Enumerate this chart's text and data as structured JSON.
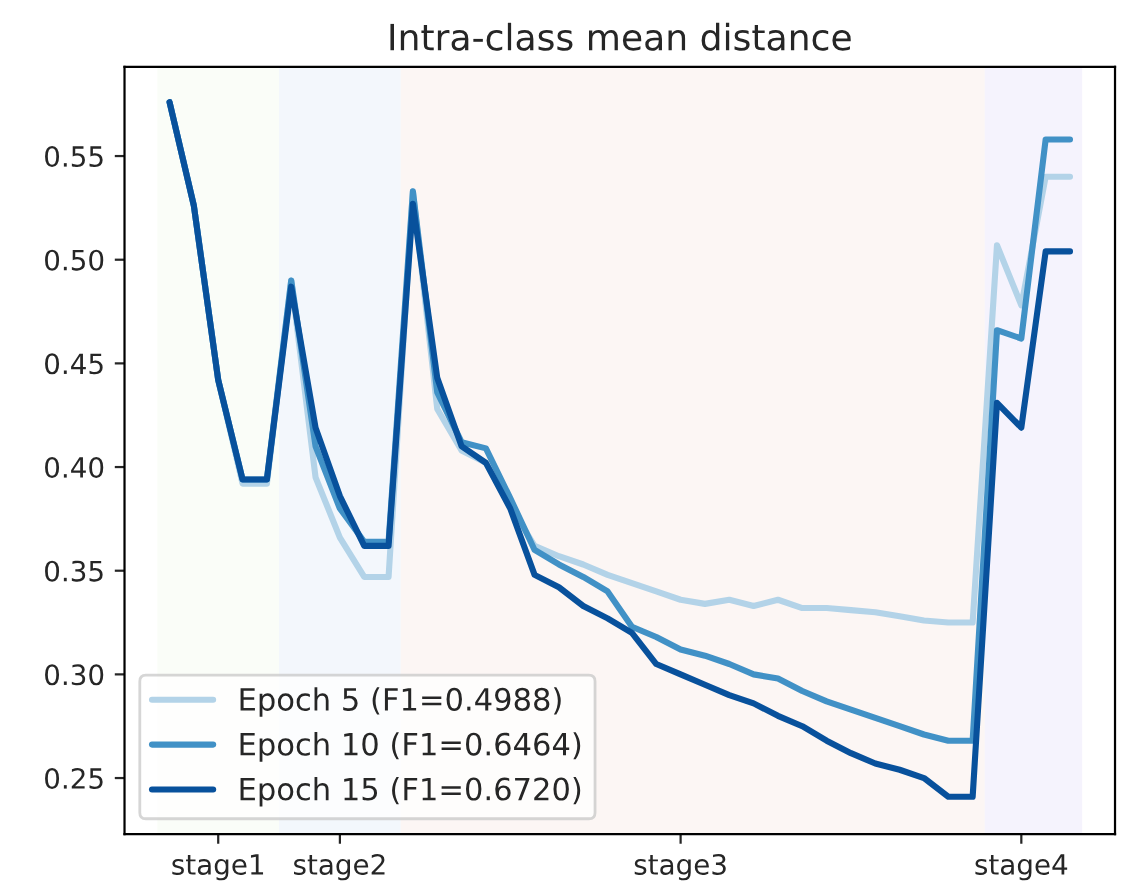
{
  "chart_data": {
    "type": "line",
    "title": "Intra-class mean distance",
    "categories": [
      null,
      null,
      "stage1",
      null,
      null,
      null,
      null,
      "stage2",
      null,
      null,
      null,
      null,
      null,
      null,
      null,
      null,
      null,
      null,
      null,
      null,
      null,
      "stage3",
      null,
      null,
      null,
      null,
      null,
      null,
      null,
      null,
      null,
      null,
      null,
      null,
      null,
      "stage4",
      null,
      null
    ],
    "series": [
      {
        "name": "Epoch 5 (F1=0.4988)",
        "color": "#b3d3e8",
        "values": [
          0.576,
          0.526,
          0.442,
          0.392,
          0.392,
          0.49,
          0.395,
          0.366,
          0.347,
          0.347,
          0.533,
          0.428,
          0.408,
          0.402,
          0.381,
          0.362,
          0.357,
          0.353,
          0.348,
          0.344,
          0.34,
          0.336,
          0.334,
          0.336,
          0.333,
          0.336,
          0.332,
          0.332,
          0.331,
          0.33,
          0.328,
          0.326,
          0.325,
          0.325,
          0.507,
          0.478,
          0.54,
          0.54
        ]
      },
      {
        "name": "Epoch 10 (F1=0.6464)",
        "color": "#4191c6",
        "values": [
          0.576,
          0.526,
          0.442,
          0.394,
          0.394,
          0.49,
          0.41,
          0.38,
          0.364,
          0.364,
          0.533,
          0.436,
          0.412,
          0.409,
          0.385,
          0.36,
          0.353,
          0.347,
          0.34,
          0.323,
          0.318,
          0.312,
          0.309,
          0.305,
          0.3,
          0.298,
          0.292,
          0.287,
          0.283,
          0.279,
          0.275,
          0.271,
          0.268,
          0.268,
          0.466,
          0.462,
          0.558,
          0.558
        ]
      },
      {
        "name": "Epoch 15 (F1=0.6720)",
        "color": "#08519c",
        "values": [
          0.576,
          0.526,
          0.442,
          0.394,
          0.394,
          0.487,
          0.419,
          0.386,
          0.362,
          0.362,
          0.527,
          0.443,
          0.41,
          0.402,
          0.38,
          0.348,
          0.342,
          0.333,
          0.327,
          0.32,
          0.305,
          0.3,
          0.295,
          0.29,
          0.286,
          0.28,
          0.275,
          0.268,
          0.262,
          0.257,
          0.254,
          0.25,
          0.241,
          0.241,
          0.431,
          0.419,
          0.504,
          0.504
        ]
      }
    ],
    "ylim": [
      0.223,
      0.593
    ],
    "yticks": [
      0.25,
      {
        "value": 0.3,
        "label": "0.30"
      },
      0.35,
      {
        "value": 0.4,
        "label": "0.40"
      },
      0.45,
      {
        "value": 0.5,
        "label": "0.50"
      },
      0.55
    ],
    "grid": false,
    "legend": "bottom left",
    "line_style": "solid",
    "marker": "none"
  }
}
